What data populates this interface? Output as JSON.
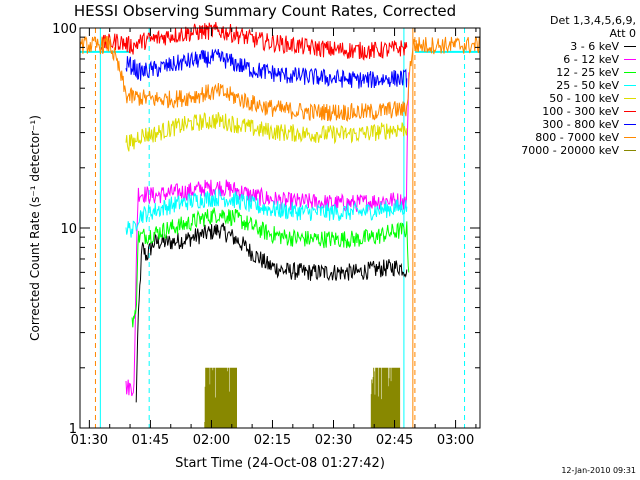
{
  "chart_data": {
    "type": "line",
    "title": "HESSI Observing Summary Count Rates, Corrected",
    "xlabel": "Start Time (24-Oct-08 01:27:42)",
    "ylabel": "Corrected Count Rate (s⁻¹ detector⁻¹)",
    "y_scale": "log",
    "ylim": [
      1,
      100
    ],
    "y_ticks": [
      {
        "value": 1,
        "label": "1"
      },
      {
        "value": 10,
        "label": "10"
      },
      {
        "value": 100,
        "label": "100"
      }
    ],
    "x_range_minutes": [
      87.7,
      186
    ],
    "x_ticks": [
      {
        "value": 90,
        "label": "01:30"
      },
      {
        "value": 105,
        "label": "01:45"
      },
      {
        "value": 120,
        "label": "02:00"
      },
      {
        "value": 135,
        "label": "02:15"
      },
      {
        "value": 150,
        "label": "02:30"
      },
      {
        "value": 165,
        "label": "02:45"
      },
      {
        "value": 180,
        "label": "03:00"
      }
    ],
    "vertical_markers": [
      {
        "minute": 91.5,
        "color": "#ff8800",
        "style": "dashed"
      },
      {
        "minute": 92.7,
        "color": "#00ffff",
        "style": "solid"
      },
      {
        "minute": 104.7,
        "color": "#00ffff",
        "style": "dashed"
      },
      {
        "minute": 167.3,
        "color": "#00ffff",
        "style": "solid"
      },
      {
        "minute": 169.5,
        "color": "#ff8800",
        "style": "solid"
      },
      {
        "minute": 170,
        "color": "#ff8800",
        "style": "dashed"
      },
      {
        "minute": 182.2,
        "color": "#00ffff",
        "style": "dashed"
      }
    ],
    "legend": {
      "header": [
        "Det 1,3,4,5,6,9,",
        "Att 0"
      ],
      "placement": "right-outside"
    },
    "series": [
      {
        "name": "3 - 6 keV",
        "color": "#000000",
        "points": [
          [
            101.5,
            1.3
          ],
          [
            102.3,
            4.5
          ],
          [
            103,
            8
          ],
          [
            104,
            7.2
          ],
          [
            106,
            8.5
          ],
          [
            110,
            8.5
          ],
          [
            114,
            8.8
          ],
          [
            118,
            9.3
          ],
          [
            122,
            9.8
          ],
          [
            126,
            8.8
          ],
          [
            130,
            7.5
          ],
          [
            134,
            6.5
          ],
          [
            138,
            6.1
          ],
          [
            144,
            6
          ],
          [
            150,
            6
          ],
          [
            156,
            6
          ],
          [
            160,
            6.2
          ],
          [
            166,
            6.4
          ],
          [
            168,
            6.2
          ]
        ]
      },
      {
        "name": "6 - 12 keV",
        "color": "#ff00ff",
        "points": [
          [
            99,
            1.6
          ],
          [
            101,
            1.6
          ],
          [
            101.3,
            3
          ],
          [
            102,
            15
          ],
          [
            106,
            14.5
          ],
          [
            110,
            15
          ],
          [
            114,
            15.2
          ],
          [
            118,
            15.8
          ],
          [
            122,
            16
          ],
          [
            126,
            15.5
          ],
          [
            130,
            14.5
          ],
          [
            134,
            14
          ],
          [
            138,
            13.6
          ],
          [
            144,
            13.5
          ],
          [
            150,
            13.3
          ],
          [
            156,
            13.3
          ],
          [
            160,
            13.6
          ],
          [
            164,
            13.8
          ],
          [
            168,
            13.5
          ],
          [
            168.5,
            60
          ]
        ]
      },
      {
        "name": "12 - 25 keV",
        "color": "#00ff00",
        "points": [
          [
            100.5,
            3.5
          ],
          [
            101.5,
            3.6
          ],
          [
            102,
            9
          ],
          [
            104,
            9.2
          ],
          [
            106,
            9.4
          ],
          [
            110,
            10
          ],
          [
            114,
            10.5
          ],
          [
            118,
            11.2
          ],
          [
            122,
            11.8
          ],
          [
            126,
            11.2
          ],
          [
            130,
            10.2
          ],
          [
            134,
            9.4
          ],
          [
            138,
            9
          ],
          [
            144,
            8.8
          ],
          [
            150,
            8.8
          ],
          [
            156,
            8.8
          ],
          [
            160,
            9
          ],
          [
            164,
            9.5
          ],
          [
            168,
            9.8
          ],
          [
            168.5,
            6
          ]
        ]
      },
      {
        "name": "25 - 50 keV",
        "color": "#00ffff",
        "points": [
          [
            99,
            10
          ],
          [
            101,
            9.8
          ],
          [
            102,
            11.5
          ],
          [
            106,
            12.2
          ],
          [
            110,
            13
          ],
          [
            114,
            13.5
          ],
          [
            118,
            14
          ],
          [
            122,
            14.2
          ],
          [
            126,
            13.8
          ],
          [
            130,
            13
          ],
          [
            134,
            12.5
          ],
          [
            138,
            12.2
          ],
          [
            144,
            12
          ],
          [
            150,
            12
          ],
          [
            156,
            12
          ],
          [
            160,
            12.2
          ],
          [
            164,
            12.5
          ],
          [
            168,
            12.8
          ]
        ]
      },
      {
        "name": "50 - 100 keV",
        "color": "#dddd00",
        "points": [
          [
            99,
            27
          ],
          [
            101,
            26.5
          ],
          [
            102,
            29
          ],
          [
            106,
            29.5
          ],
          [
            110,
            31.5
          ],
          [
            114,
            33
          ],
          [
            118,
            34
          ],
          [
            122,
            34.5
          ],
          [
            126,
            33
          ],
          [
            130,
            31.5
          ],
          [
            134,
            30.5
          ],
          [
            138,
            30
          ],
          [
            144,
            29.5
          ],
          [
            150,
            29.5
          ],
          [
            156,
            29.5
          ],
          [
            160,
            30
          ],
          [
            164,
            31
          ],
          [
            168,
            31.5
          ]
        ]
      },
      {
        "name": "100 - 300 keV",
        "color": "#ff0000",
        "points": [
          [
            93,
            83
          ],
          [
            97,
            86
          ],
          [
            99,
            83
          ],
          [
            101,
            81
          ],
          [
            102,
            85
          ],
          [
            106,
            88
          ],
          [
            110,
            92
          ],
          [
            114,
            94
          ],
          [
            118,
            96
          ],
          [
            122,
            97
          ],
          [
            126,
            93
          ],
          [
            130,
            88
          ],
          [
            134,
            85
          ],
          [
            138,
            83
          ],
          [
            144,
            80
          ],
          [
            150,
            78
          ],
          [
            156,
            77
          ],
          [
            160,
            77
          ],
          [
            164,
            78
          ],
          [
            168,
            80
          ]
        ]
      },
      {
        "name": "300 - 800 keV",
        "color": "#0000ff",
        "points": [
          [
            99,
            66
          ],
          [
            101,
            64
          ],
          [
            102,
            60
          ],
          [
            106,
            62
          ],
          [
            110,
            65
          ],
          [
            114,
            68
          ],
          [
            118,
            70
          ],
          [
            122,
            71
          ],
          [
            126,
            66
          ],
          [
            130,
            62
          ],
          [
            134,
            60
          ],
          [
            138,
            58
          ],
          [
            144,
            57
          ],
          [
            150,
            56
          ],
          [
            156,
            55
          ],
          [
            160,
            55
          ],
          [
            164,
            56
          ],
          [
            168,
            56
          ]
        ]
      },
      {
        "name": "800 - 7000 keV",
        "color": "#ff8800",
        "points": [
          [
            87.7,
            82
          ],
          [
            93,
            82
          ],
          [
            95,
            83
          ],
          [
            99,
            46
          ],
          [
            101,
            45
          ],
          [
            102,
            45
          ],
          [
            106,
            44
          ],
          [
            110,
            44
          ],
          [
            114,
            45
          ],
          [
            118,
            47
          ],
          [
            122,
            48
          ],
          [
            126,
            45
          ],
          [
            130,
            42
          ],
          [
            134,
            40
          ],
          [
            138,
            39
          ],
          [
            144,
            38
          ],
          [
            150,
            38
          ],
          [
            156,
            38
          ],
          [
            160,
            38
          ],
          [
            164,
            39
          ],
          [
            168,
            39
          ],
          [
            169.5,
            82
          ],
          [
            186,
            82
          ]
        ]
      },
      {
        "name": "7000 - 20000 keV",
        "color": "#888800",
        "points": [
          [
            118,
            1
          ],
          [
            118.5,
            2
          ],
          [
            126,
            2
          ],
          [
            126.5,
            1
          ],
          [
            159,
            1
          ],
          [
            159.5,
            2
          ],
          [
            166,
            2
          ],
          [
            166.5,
            1
          ]
        ]
      }
    ],
    "flat_lines": [
      {
        "color": "#00ffff",
        "y": 76,
        "from": 87.7,
        "to": 100
      },
      {
        "color": "#00ffff",
        "y": 76,
        "from": 170,
        "to": 186
      }
    ]
  },
  "footer_stamp": "12-Jan-2010 09:31"
}
